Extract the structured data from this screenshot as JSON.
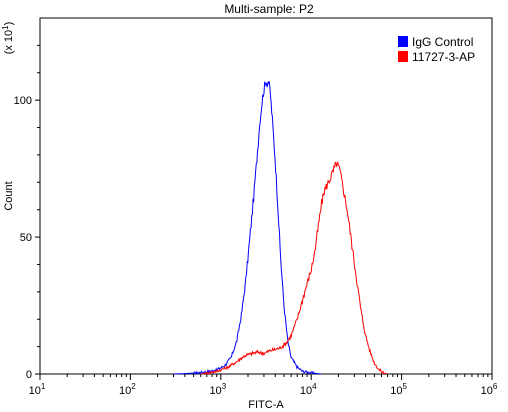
{
  "chart_data": {
    "type": "line",
    "title": "Multi-sample: P2",
    "xlabel": "FITC-A",
    "ylabel": "Count",
    "y_multiplier_label": "(x 10",
    "y_multiplier_exp": "1",
    "x_scale": "log",
    "xlim": [
      10,
      1000000
    ],
    "ylim": [
      0,
      130
    ],
    "x_ticks": [
      {
        "value": 10,
        "base": "10",
        "exp": "1"
      },
      {
        "value": 100,
        "base": "10",
        "exp": "2"
      },
      {
        "value": 1000,
        "base": "10",
        "exp": "3"
      },
      {
        "value": 10000,
        "base": "10",
        "exp": "4"
      },
      {
        "value": 100000,
        "base": "10",
        "exp": "5"
      },
      {
        "value": 1000000,
        "base": "10",
        "exp": "6"
      }
    ],
    "y_ticks": [
      {
        "value": 0,
        "label": "0"
      },
      {
        "value": 50,
        "label": "50"
      },
      {
        "value": 100,
        "label": "100"
      }
    ],
    "legend_position": "top-right",
    "series": [
      {
        "name": "IgG Control",
        "color": "#0000ff",
        "points": [
          [
            300,
            0
          ],
          [
            500,
            0.3
          ],
          [
            700,
            0.8
          ],
          [
            900,
            1.5
          ],
          [
            1100,
            3
          ],
          [
            1300,
            6
          ],
          [
            1500,
            12
          ],
          [
            1700,
            22
          ],
          [
            1900,
            35
          ],
          [
            2100,
            50
          ],
          [
            2300,
            64
          ],
          [
            2500,
            78
          ],
          [
            2700,
            92
          ],
          [
            2900,
            101
          ],
          [
            3050,
            105
          ],
          [
            3150,
            107
          ],
          [
            3250,
            106
          ],
          [
            3350,
            107
          ],
          [
            3500,
            104
          ],
          [
            3700,
            94
          ],
          [
            4000,
            78
          ],
          [
            4300,
            60
          ],
          [
            4600,
            42
          ],
          [
            5000,
            25
          ],
          [
            5500,
            12
          ],
          [
            6000,
            6
          ],
          [
            7000,
            2.5
          ],
          [
            8000,
            1
          ],
          [
            10000,
            0.4
          ],
          [
            13000,
            0
          ]
        ]
      },
      {
        "name": "11727-3-AP",
        "color": "#ff0000",
        "points": [
          [
            600,
            0
          ],
          [
            900,
            1
          ],
          [
            1200,
            2.5
          ],
          [
            1500,
            4.5
          ],
          [
            1800,
            6.5
          ],
          [
            2200,
            7.5
          ],
          [
            2600,
            8
          ],
          [
            3000,
            7.5
          ],
          [
            3500,
            8.5
          ],
          [
            4000,
            9
          ],
          [
            4500,
            9.5
          ],
          [
            5200,
            11
          ],
          [
            6000,
            14
          ],
          [
            7000,
            20
          ],
          [
            8000,
            27
          ],
          [
            9000,
            33
          ],
          [
            10000,
            38
          ],
          [
            11000,
            45
          ],
          [
            12000,
            54
          ],
          [
            13000,
            62
          ],
          [
            14000,
            67
          ],
          [
            15500,
            70
          ],
          [
            17000,
            73
          ],
          [
            19000,
            77
          ],
          [
            20500,
            75
          ],
          [
            22000,
            70
          ],
          [
            25000,
            60
          ],
          [
            28000,
            48
          ],
          [
            32000,
            34
          ],
          [
            36000,
            22
          ],
          [
            40000,
            14
          ],
          [
            45000,
            8
          ],
          [
            50000,
            4
          ],
          [
            55000,
            2
          ],
          [
            60000,
            0.8
          ],
          [
            70000,
            0
          ]
        ]
      }
    ]
  }
}
